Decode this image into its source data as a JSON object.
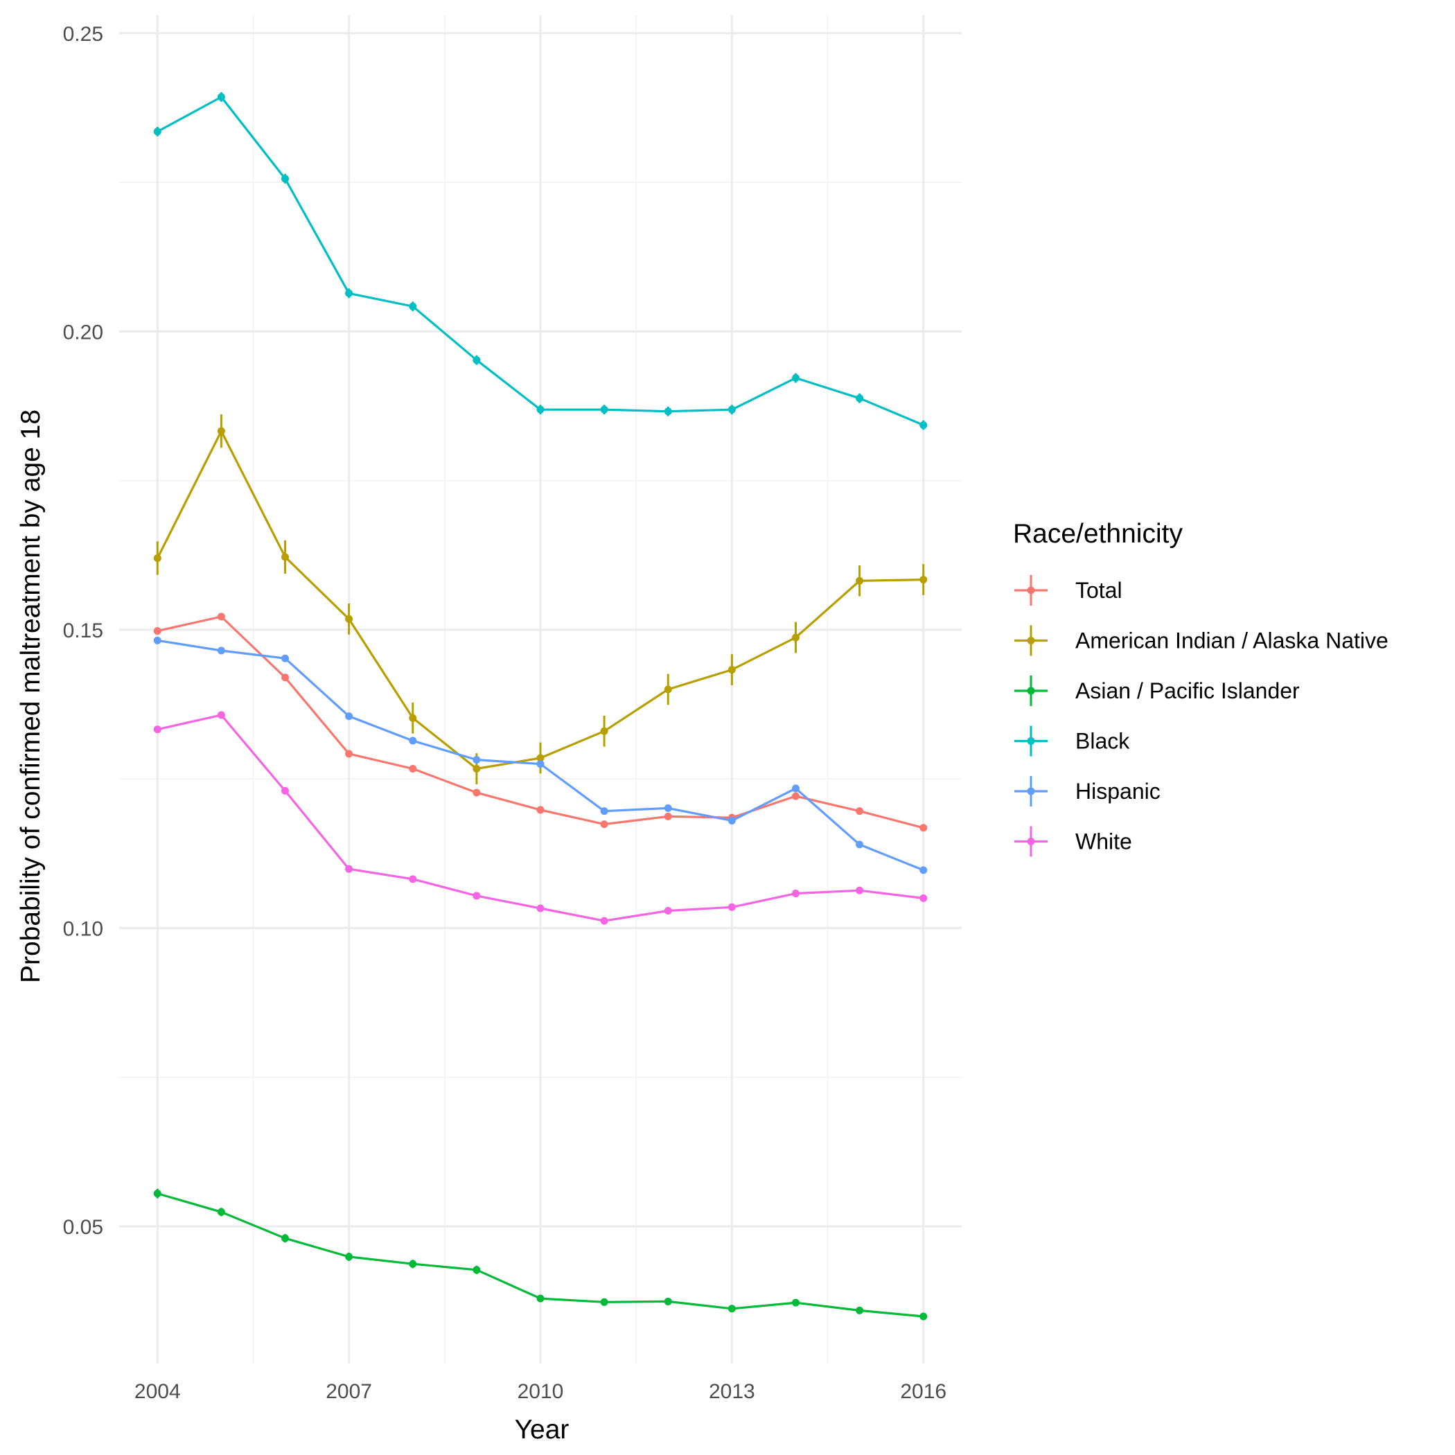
{
  "chart_data": {
    "type": "line",
    "title": "",
    "xlabel": "Year",
    "ylabel": "Probability of confirmed maltreatment by age 18",
    "xlim": [
      2003.4,
      2016.6
    ],
    "ylim": [
      0.027,
      0.253
    ],
    "x_ticks": [
      2004,
      2007,
      2010,
      2013,
      2016
    ],
    "y_ticks": [
      0.05,
      0.1,
      0.15,
      0.2,
      0.25
    ],
    "y_tick_labels": [
      "0.05",
      "0.10",
      "0.15",
      "0.20",
      "0.25"
    ],
    "grid": true,
    "legend_title": "Race/ethnicity",
    "legend_position": "right",
    "x": [
      2004,
      2005,
      2006,
      2007,
      2008,
      2009,
      2010,
      2011,
      2012,
      2013,
      2014,
      2015,
      2016
    ],
    "series": [
      {
        "name": "Total",
        "color": "#F8766D",
        "values": [
          0.1498,
          0.1522,
          0.142,
          0.1292,
          0.1267,
          0.1227,
          0.1198,
          0.1174,
          0.1187,
          0.1185,
          0.1221,
          0.1196,
          0.1168
        ],
        "error": [
          0.0004,
          0.0004,
          0.0004,
          0.0004,
          0.0004,
          0.0004,
          0.0004,
          0.0004,
          0.0004,
          0.0004,
          0.0004,
          0.0004,
          0.0004
        ]
      },
      {
        "name": "American Indian / Alaska Native",
        "color": "#B79F00",
        "values": [
          0.162,
          0.1833,
          0.1622,
          0.1518,
          0.1352,
          0.1267,
          0.1285,
          0.133,
          0.14,
          0.1433,
          0.1487,
          0.1582,
          0.1584
        ],
        "error": [
          0.0028,
          0.0028,
          0.0028,
          0.0026,
          0.0026,
          0.0026,
          0.0026,
          0.0026,
          0.0026,
          0.0026,
          0.0026,
          0.0026,
          0.0026
        ]
      },
      {
        "name": "Asian / Pacific Islander",
        "color": "#00BA38",
        "values": [
          0.0555,
          0.0524,
          0.048,
          0.0449,
          0.0437,
          0.0427,
          0.0379,
          0.0373,
          0.0374,
          0.0362,
          0.0372,
          0.0359,
          0.0349
        ],
        "error": [
          0.0008,
          0.0007,
          0.0007,
          0.0007,
          0.0007,
          0.0007,
          0.0006,
          0.0006,
          0.0006,
          0.0006,
          0.0006,
          0.0006,
          0.0006
        ]
      },
      {
        "name": "Black",
        "color": "#00BFC4",
        "values": [
          0.2335,
          0.2393,
          0.2256,
          0.2064,
          0.2042,
          0.1952,
          0.1869,
          0.1869,
          0.1866,
          0.1869,
          0.1922,
          0.1888,
          0.1843
        ],
        "error": [
          0.0008,
          0.0008,
          0.0008,
          0.0008,
          0.0008,
          0.0008,
          0.0008,
          0.0008,
          0.0008,
          0.0008,
          0.0008,
          0.0008,
          0.0008
        ]
      },
      {
        "name": "Hispanic",
        "color": "#619CFF",
        "values": [
          0.1482,
          0.1465,
          0.1452,
          0.1355,
          0.1314,
          0.1282,
          0.1275,
          0.1196,
          0.1201,
          0.118,
          0.1234,
          0.114,
          0.1097
        ],
        "error": [
          0.0005,
          0.0005,
          0.0005,
          0.0005,
          0.0005,
          0.0005,
          0.0005,
          0.0005,
          0.0005,
          0.0005,
          0.0005,
          0.0005,
          0.0005
        ]
      },
      {
        "name": "White",
        "color": "#F564E3",
        "values": [
          0.1333,
          0.1357,
          0.123,
          0.1099,
          0.1082,
          0.1054,
          0.1033,
          0.1012,
          0.1029,
          0.1035,
          0.1058,
          0.1063,
          0.105
        ],
        "error": [
          0.0004,
          0.0004,
          0.0004,
          0.0004,
          0.0004,
          0.0004,
          0.0004,
          0.0004,
          0.0004,
          0.0004,
          0.0004,
          0.0004,
          0.0004
        ]
      }
    ]
  }
}
